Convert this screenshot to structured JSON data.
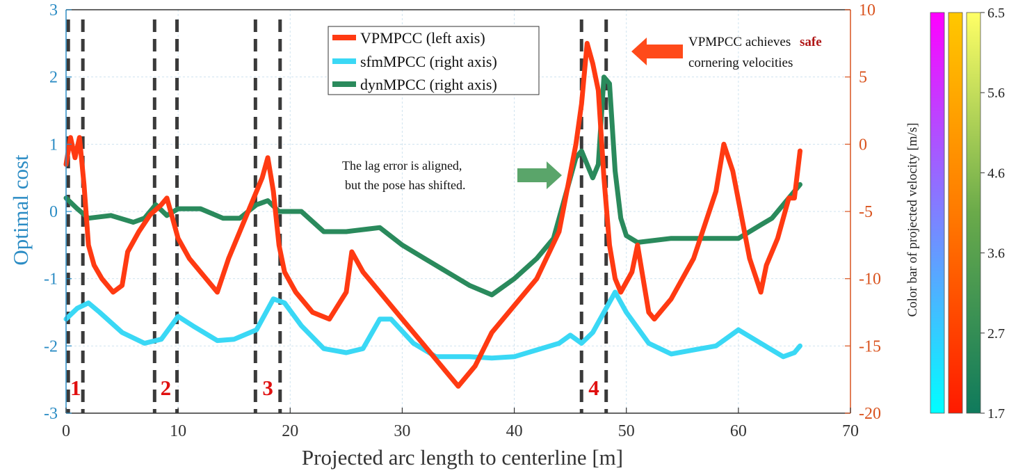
{
  "chart_data": {
    "type": "line",
    "xlabel": "Projected arc length to centerline [m]",
    "ylabel_left": "Optimal cost",
    "colorbar_label": "Color bar of projected velocity [m/s]",
    "xlim": [
      0,
      70
    ],
    "ylim_left": [
      -3,
      3
    ],
    "ylim_right": [
      -20,
      10
    ],
    "x_ticks": [
      "0",
      "10",
      "20",
      "30",
      "40",
      "50",
      "60",
      "70"
    ],
    "y_left_ticks": [
      "-3",
      "-2",
      "-1",
      "0",
      "1",
      "2",
      "3"
    ],
    "y_right_ticks": [
      "-20",
      "-15",
      "-10",
      "-5",
      "0",
      "5",
      "10"
    ],
    "colorbar_ticks": [
      "1.7",
      "2.7",
      "3.6",
      "4.6",
      "5.6",
      "6.5"
    ],
    "grid": true,
    "legend_position": "top-center",
    "colors": {
      "left_axis": "#2b8cc4",
      "right_axis": "#d9531e",
      "vpmpcc": "#ff3a12",
      "sfmmpcc": "#3ad8f5",
      "dynmpcc": "#2a8a5c",
      "dashed": "#3a3a3a",
      "marker_label": "#e01010",
      "safe_word": "#b01818"
    },
    "series": [
      {
        "name": "VPMPCC (left axis)",
        "axis": "left",
        "x": [
          0,
          0.4,
          0.8,
          1.2,
          1.6,
          2.0,
          2.5,
          3.2,
          4.2,
          5.0,
          5.5,
          6.5,
          7.5,
          8.5,
          9.0,
          9.5,
          10.0,
          11.0,
          12.5,
          13.5,
          14.5,
          15.5,
          16.5,
          17.5,
          18.0,
          18.5,
          19.0,
          19.5,
          20.5,
          22.0,
          23.5,
          25.0,
          25.5,
          26.5,
          28.0,
          30.0,
          32.0,
          34.0,
          35.0,
          36.5,
          38.0,
          40.0,
          42.0,
          44.0,
          45.5,
          46.0,
          46.5,
          47.0,
          47.5,
          48.0,
          48.5,
          49.0,
          49.5,
          50.5,
          51.0,
          52.0,
          52.5,
          54.0,
          56.0,
          58.0,
          58.7,
          59.5,
          61.0,
          62.0,
          62.5,
          63.5,
          64.5,
          65.0,
          65.5
        ],
        "y": [
          0.7,
          1.1,
          0.8,
          1.1,
          0.4,
          -0.5,
          -0.8,
          -1.0,
          -1.2,
          -1.1,
          -0.6,
          -0.3,
          -0.05,
          0.1,
          0.2,
          -0.1,
          -0.4,
          -0.7,
          -1.0,
          -1.2,
          -0.7,
          -0.3,
          0.1,
          0.5,
          0.8,
          0.3,
          -0.5,
          -0.9,
          -1.2,
          -1.5,
          -1.6,
          -1.2,
          -0.6,
          -0.9,
          -1.2,
          -1.6,
          -2.0,
          -2.4,
          -2.6,
          -2.3,
          -1.8,
          -1.4,
          -1.0,
          -0.3,
          1.0,
          1.6,
          2.5,
          2.2,
          1.8,
          0.5,
          -0.5,
          -1.0,
          -1.2,
          -0.9,
          -0.5,
          -1.5,
          -1.6,
          -1.3,
          -0.7,
          0.3,
          1.0,
          0.6,
          -0.7,
          -1.2,
          -0.8,
          -0.4,
          0.2,
          0.2,
          0.9
        ]
      },
      {
        "name": "sfmMPCC (right axis)",
        "axis": "right",
        "x": [
          0,
          1,
          2,
          3,
          5,
          7,
          8.5,
          10,
          11.5,
          13.5,
          15,
          17,
          18.5,
          19.5,
          21,
          23,
          25,
          26.5,
          28,
          29,
          31,
          33,
          36,
          38,
          40,
          42,
          44,
          45,
          46,
          47,
          48,
          49,
          50,
          52,
          54,
          56,
          58,
          60,
          62,
          64,
          65,
          65.5
        ],
        "y": [
          -13,
          -12.2,
          -11.8,
          -12.5,
          -14,
          -14.8,
          -14.5,
          -12.8,
          -13.6,
          -14.6,
          -14.5,
          -13.8,
          -11.5,
          -11.8,
          -13.5,
          -15.2,
          -15.5,
          -15.2,
          -13.0,
          -13.0,
          -14.8,
          -15.8,
          -15.8,
          -15.9,
          -15.8,
          -15.3,
          -14.8,
          -14.2,
          -14.8,
          -14.0,
          -12.5,
          -11.0,
          -12.5,
          -14.8,
          -15.6,
          -15.3,
          -15.0,
          -13.8,
          -14.8,
          -15.8,
          -15.5,
          -15.0
        ]
      },
      {
        "name": "dynMPCC (right axis)",
        "axis": "right",
        "x": [
          0,
          1,
          2,
          4,
          6,
          7,
          8,
          9,
          10,
          12,
          14,
          15.5,
          17,
          18,
          19,
          20,
          21,
          23,
          25,
          27,
          28,
          30,
          32,
          34,
          36,
          38,
          40,
          42,
          43.5,
          44.5,
          45.5,
          46,
          46.5,
          47,
          47.5,
          48,
          48.5,
          49,
          49.5,
          50,
          51,
          54,
          56,
          58,
          60,
          62,
          63,
          64,
          65.5
        ],
        "y": [
          -4.0,
          -4.8,
          -5.5,
          -5.3,
          -5.8,
          -5.5,
          -4.5,
          -5.3,
          -4.8,
          -4.8,
          -5.5,
          -5.5,
          -4.5,
          -4.2,
          -5.0,
          -5.0,
          -5.0,
          -6.5,
          -6.5,
          -6.3,
          -6.2,
          -7.5,
          -8.5,
          -9.5,
          -10.5,
          -11.2,
          -10.0,
          -8.5,
          -7.0,
          -4.0,
          -1.0,
          -0.5,
          -1.5,
          -2.5,
          -1.5,
          5.0,
          4.5,
          -2.0,
          -5.5,
          -6.8,
          -7.3,
          -7.0,
          -7.0,
          -7.0,
          -7.0,
          -6.0,
          -5.5,
          -4.5,
          -3.0
        ]
      }
    ],
    "dashed_lines_x": [
      0.2,
      1.5,
      7.9,
      9.9,
      16.9,
      19.1,
      46.0,
      48.2
    ],
    "markers": [
      "1",
      "2",
      "3",
      "4"
    ],
    "annotations": {
      "top_right_prefix": "VPMPCC achieves",
      "top_right_emph": "safe",
      "top_right_line2": "cornering velocities",
      "middle_line1": "The lag error is aligned,",
      "middle_line2": "but the pose has shifted."
    }
  }
}
